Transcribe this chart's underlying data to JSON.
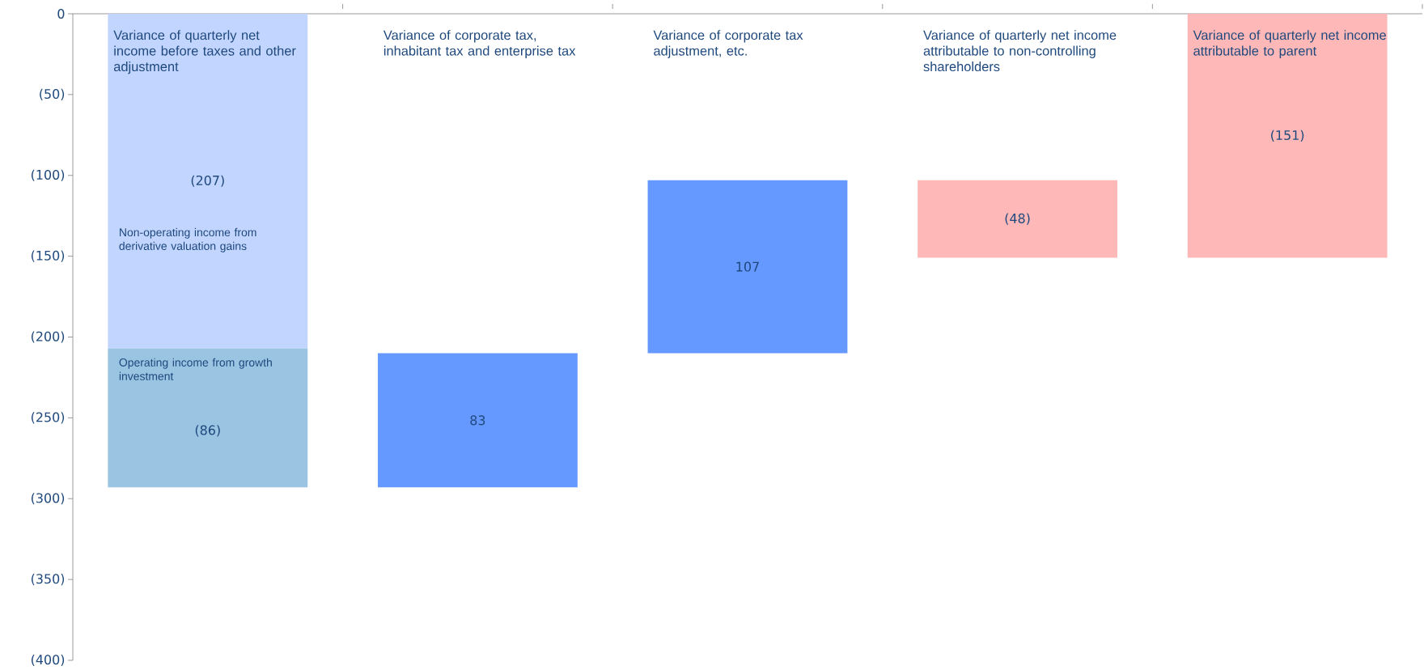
{
  "chart_data": {
    "type": "bar",
    "categories": [
      "Variance of quarterly net income before taxes and other adjustment",
      "Variance of corporate tax, inhabitant tax and enterprise tax",
      "Variance of corporate tax adjustment, etc.",
      "Variance of quarterly net income attributable to non-controlling shareholders",
      "Variance of quarterly net income attributable to parent"
    ],
    "series": [
      {
        "name": "Non-operating income from derivative valuation gains",
        "color": "#c2d5ff",
        "values": [
          -207,
          null,
          null,
          null,
          null
        ],
        "base": [
          0,
          null,
          null,
          null,
          null
        ],
        "value_labels": [
          "(207)",
          null,
          null,
          null,
          null
        ]
      },
      {
        "name": "Operating income from growth investment",
        "color": "#9bc4e2",
        "values": [
          -86,
          null,
          null,
          null,
          null
        ],
        "base": [
          -207,
          null,
          null,
          null,
          null
        ],
        "value_labels": [
          "(86)",
          null,
          null,
          null,
          null
        ]
      },
      {
        "color": "#6699ff",
        "values": [
          null,
          83,
          107,
          null,
          null
        ],
        "base": [
          null,
          -293,
          -210,
          null,
          null
        ],
        "value_labels": [
          null,
          "83",
          "107",
          null,
          null
        ]
      },
      {
        "color": "#ffb8b8",
        "values": [
          null,
          null,
          null,
          -48,
          -151
        ],
        "base": [
          null,
          null,
          null,
          -103,
          0
        ],
        "value_labels": [
          null,
          null,
          null,
          "(48)",
          "(151)"
        ]
      }
    ],
    "ylim": [
      -400,
      0
    ],
    "yticks": [
      0,
      {
        "value": -50,
        "label": "(50)"
      },
      {
        "value": -100,
        "label": "(100)"
      },
      {
        "value": -150,
        "label": "(150)"
      },
      {
        "value": -200,
        "label": "(200)"
      },
      {
        "value": -250,
        "label": "(250)"
      },
      {
        "value": -300,
        "label": "(300)"
      },
      {
        "value": -350,
        "label": "(350)"
      },
      {
        "value": -400,
        "label": "(400)"
      }
    ]
  }
}
